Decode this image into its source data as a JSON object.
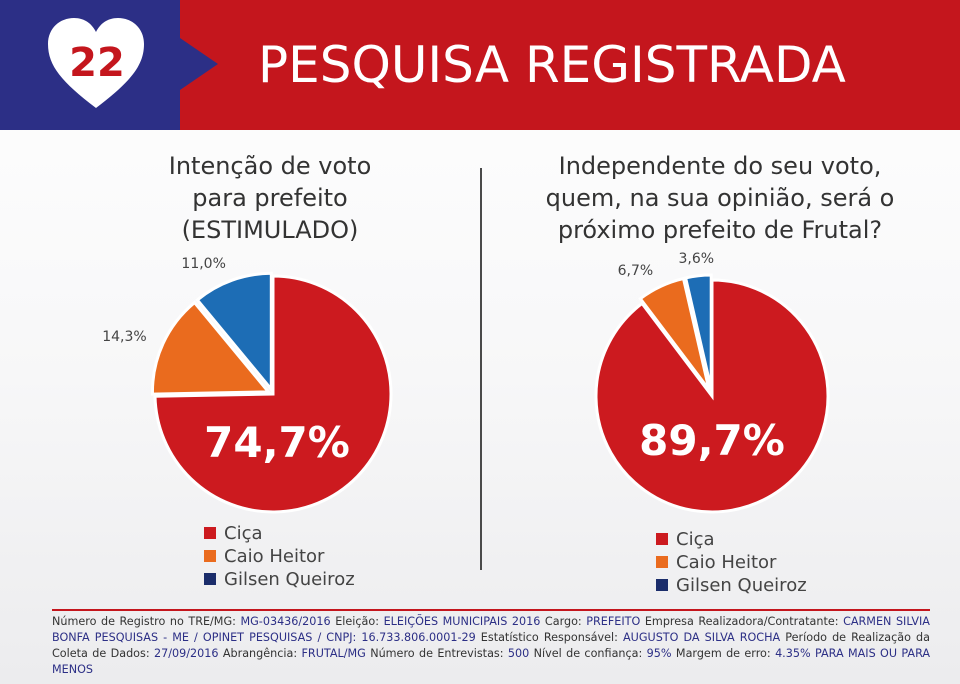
{
  "header": {
    "logo_number": "22",
    "title": "PESQUISA REGISTRADA"
  },
  "colors": {
    "blue": "#2c2f86",
    "red": "#c4161d",
    "pie_red": "#cc1a1f",
    "orange": "#ea6b1e",
    "pie_blue": "#1d6db5",
    "navy": "#1b2d6b"
  },
  "chart_data": [
    {
      "type": "pie",
      "title": "Intenção de voto para prefeito (ESTIMULADO)",
      "labels": [
        "Ciça",
        "Caio Heitor",
        "Gilsen Queiroz"
      ],
      "values": [
        74.7,
        14.3,
        11.0
      ],
      "value_labels": [
        "74,7%",
        "14,3%",
        "11,0%"
      ],
      "colors": [
        "#cc1a1f",
        "#ea6b1e",
        "#1d6db5"
      ],
      "legend_colors": [
        "#cc1a1f",
        "#ea6b1e",
        "#1b2d6b"
      ],
      "legend_position": "bottom"
    },
    {
      "type": "pie",
      "title": "Independente do seu voto, quem, na sua opinião, será o próximo prefeito de Frutal?",
      "labels": [
        "Ciça",
        "Caio Heitor",
        "Gilsen Queiroz"
      ],
      "values": [
        89.7,
        6.7,
        3.6
      ],
      "value_labels": [
        "89,7%",
        "6,7%",
        "3,6%"
      ],
      "colors": [
        "#cc1a1f",
        "#ea6b1e",
        "#1d6db5"
      ],
      "legend_colors": [
        "#cc1a1f",
        "#ea6b1e",
        "#1b2d6b"
      ],
      "legend_position": "bottom"
    }
  ],
  "questions": {
    "q1": [
      "Intenção de voto",
      "para prefeito",
      "(ESTIMULADO)"
    ],
    "q2": [
      "Independente do seu voto,",
      "quem, na sua opinião, será o",
      "próximo prefeito de Frutal?"
    ]
  },
  "footer": {
    "registro_label": "Número de Registro no TRE/MG:",
    "registro_value": "MG-03436/2016",
    "eleicao_label": "Eleição:",
    "eleicao_value": "ELEIÇÕES MUNICIPAIS 2016",
    "cargo_label": "Cargo:",
    "cargo_value": "PREFEITO",
    "empresa_label": "Empresa Realizadora/Contratante:",
    "empresa_value": "CARMEN SILVIA BONFA PESQUISAS - ME / OPINET PESQUISAS / CNPJ: 16.733.806.0001-29",
    "estatistico_label": "Estatístico Responsável:",
    "estatistico_value": "AUGUSTO DA SILVA ROCHA",
    "periodo_label": "Período de Realização da Coleta de Dados:",
    "periodo_value": "27/09/2016",
    "abrangencia_label": "Abrangência:",
    "abrangencia_value": "FRUTAL/MG",
    "entrevistas_label": "Número de Entrevistas:",
    "entrevistas_value": "500",
    "confianca_label": "Nível de confiança:",
    "confianca_value": "95%",
    "margem_label": "Margem de erro:",
    "margem_value": "4.35% PARA MAIS OU PARA MENOS"
  }
}
